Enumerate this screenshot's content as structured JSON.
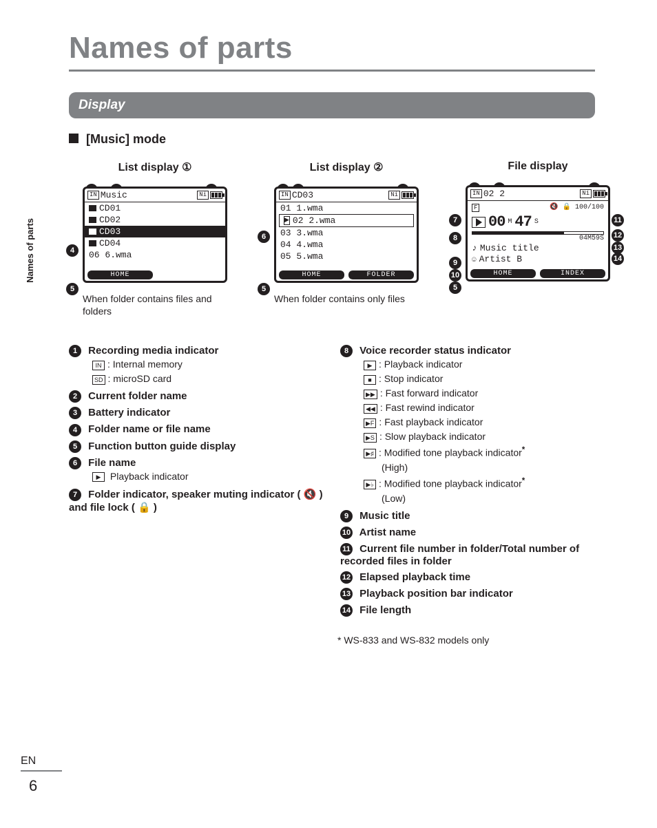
{
  "page": {
    "title": "Names of parts",
    "side_tab": "Names of parts",
    "section_bar": "Display",
    "mode_heading_prefix": "[",
    "mode_heading_word": "Music",
    "mode_heading_suffix": "] mode",
    "lang": "EN",
    "page_number": "6",
    "footnote": "* WS-833 and WS-832 models only"
  },
  "colors": {
    "accent_gray": "#808285",
    "text": "#231f20",
    "white": "#ffffff"
  },
  "displays": {
    "list1": {
      "label": "List display ①",
      "header_left": "Music",
      "header_ni": "Ni",
      "rows": [
        "CD01",
        "CD02",
        "CD03",
        "CD04",
        "06  6.wma"
      ],
      "selected_index": 2,
      "footer": [
        "HOME"
      ],
      "caption": "When folder contains files and folders",
      "callouts_top": [
        "1",
        "2",
        "3"
      ],
      "callouts_left": [
        "4",
        "5"
      ]
    },
    "list2": {
      "label": "List display ②",
      "header_left": "CD03",
      "header_ni": "Ni",
      "rows": [
        "01  1.wma",
        "02  2.wma",
        "03  3.wma",
        "04  4.wma",
        "05  5.wma"
      ],
      "selected_index": 1,
      "footer": [
        "HOME",
        "FOLDER"
      ],
      "caption": "When folder contains only files",
      "callouts_top": [
        "1",
        "2",
        "3"
      ],
      "callouts_left": [
        "6",
        "5"
      ]
    },
    "file": {
      "label": "File display",
      "header_left": "02  2",
      "header_ni": "Ni",
      "counter": "100/100",
      "time_m": "00",
      "time_m_unit": "M",
      "time_s": "47",
      "time_s_unit": "S",
      "length": "04M59S",
      "title_label": "Music title",
      "artist_label": "Artist B",
      "footer": [
        "HOME",
        "INDEX"
      ],
      "callouts_top": [
        "1",
        "6",
        "3"
      ],
      "callouts_left": [
        "7",
        "8",
        "9",
        "10",
        "5"
      ],
      "callouts_right": [
        "11",
        "12",
        "13",
        "14"
      ]
    }
  },
  "definitions": {
    "left": [
      {
        "n": "1",
        "title": "Recording media indicator",
        "subs": [
          {
            "ico": "IN",
            "text": ": Internal memory"
          },
          {
            "ico": "SD",
            "text": ": microSD card"
          }
        ]
      },
      {
        "n": "2",
        "title": "Current folder name"
      },
      {
        "n": "3",
        "title": "Battery indicator"
      },
      {
        "n": "4",
        "title": "Folder name or file name"
      },
      {
        "n": "5",
        "title": "Function button guide display"
      },
      {
        "n": "6",
        "title": "File name",
        "subs": [
          {
            "ico": "▶",
            "text": " Playback indicator"
          }
        ]
      },
      {
        "n": "7",
        "title": "Folder indicator, speaker muting indicator ( 🔇 ) and file lock ( 🔒 )"
      }
    ],
    "right": [
      {
        "n": "8",
        "title": "Voice recorder status indicator",
        "subs": [
          {
            "ico": "▶",
            "text": ": Playback indicator"
          },
          {
            "ico": "■",
            "text": ": Stop indicator"
          },
          {
            "ico": "▶▶",
            "text": ": Fast forward indicator"
          },
          {
            "ico": "◀◀",
            "text": ": Fast rewind indicator"
          },
          {
            "ico": "▶F",
            "text": ": Fast playback indicator"
          },
          {
            "ico": "▶S",
            "text": ": Slow playback indicator"
          },
          {
            "ico": "▶♯",
            "text": ": Modified tone playback indicator",
            "ast": true,
            "sub2": "(High)"
          },
          {
            "ico": "▶♭",
            "text": ": Modified tone playback indicator",
            "ast": true,
            "sub2": "(Low)"
          }
        ]
      },
      {
        "n": "9",
        "title": "Music title"
      },
      {
        "n": "10",
        "title": "Artist name"
      },
      {
        "n": "11",
        "title": "Current file number in folder/Total number of recorded files in folder"
      },
      {
        "n": "12",
        "title": "Elapsed playback time"
      },
      {
        "n": "13",
        "title": "Playback position bar indicator"
      },
      {
        "n": "14",
        "title": "File length"
      }
    ]
  }
}
